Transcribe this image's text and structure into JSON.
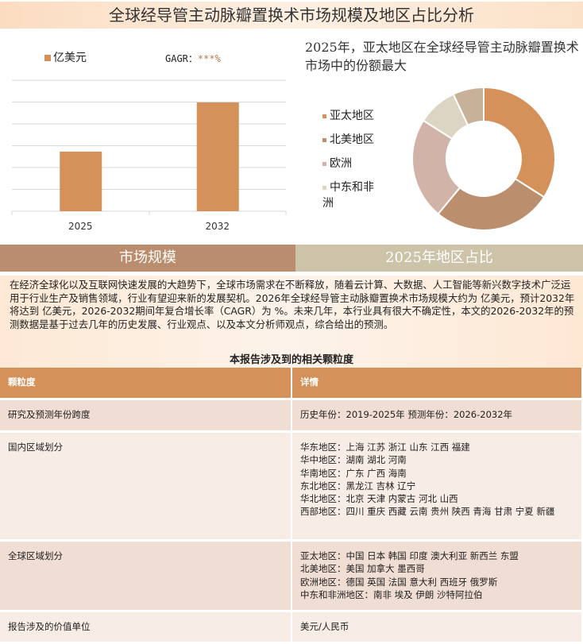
{
  "title": "全球经导管主动脉瓣置换术市场规模及地区占比分析",
  "colors": {
    "accent": "#d4915a",
    "tab_left": "#b98d6d",
    "tab_right": "#cdc3a8"
  },
  "chart_data": [
    {
      "type": "bar",
      "categories": [
        "2025",
        "2032"
      ],
      "values": [
        2.73,
        4.98
      ],
      "ylim": [
        0,
        6
      ],
      "grid": true,
      "legend": "亿美元",
      "cagr_label": "GAGR：",
      "cagr_value": "***%",
      "series": [
        {
          "name": "亿美元",
          "values": [
            2.73,
            4.98
          ]
        }
      ]
    },
    {
      "type": "pie",
      "donut": true,
      "title": "2025年，亚太地区在全球经导管主动脉瓣置换术市场中的份额最大",
      "labels": [
        "亚太地区",
        "北美地区",
        "欧洲",
        "中东和非洲",
        ""
      ],
      "values": [
        34,
        27,
        23,
        9,
        7
      ],
      "colors": [
        "#d4915a",
        "#bb8e6d",
        "#d2b3a8",
        "#ddd5c4",
        "#c7b198"
      ],
      "legend": "left"
    }
  ],
  "tabs": [
    "市场规模",
    "2025年地区占比"
  ],
  "intro": "在经济全球化以及互联网快速发展的大趋势下，全球市场需求在不断释放，随着云计算、大数据、人工智能等新兴数字技术广泛运用于行业生产及销售领域，行业有望迎来新的发展契机。2026年全球经导管主动脉瓣置换术市场规模大约为 亿美元，预计2032年将达到 亿美元，2026-2032期间年复合增长率（CAGR）为 %。未来几年，本行业具有很大不确定性，本文的2026-2032年的预测数据是基于过去几年的历史发展、行业观点、以及本文分析师观点，综合给出的预测。",
  "table": {
    "title": "本报告涉及到的相关颗粒度",
    "headers": [
      "颗粒度",
      "详情"
    ],
    "rows": [
      {
        "k": "研究及预测年份跨度",
        "v": [
          "历史年份：2019-2025年 预测年份：2026-2032年"
        ]
      },
      {
        "k": "国内区域划分",
        "v": [
          "华东地区：上海  江苏  浙江  山东  江西  福建",
          "华中地区：湖南  湖北  河南",
          "华南地区：广东  广西  海南",
          "东北地区：黑龙江  吉林  辽宁",
          "华北地区：北京  天津  内蒙古  河北  山西",
          "西部地区：四川  重庆  西藏  云南  贵州  陕西  青海  甘肃  宁夏  新疆"
        ]
      },
      {
        "k": "全球区域划分",
        "v": [
          "亚太地区：中国  日本  韩国  印度  澳大利亚  新西兰  东盟",
          "北美地区：美国  加拿大  墨西哥",
          "欧洲地区：德国  英国  法国  意大利  西班牙  俄罗斯",
          "中东和非洲地区：南非  埃及  伊朗  沙特阿拉伯"
        ]
      },
      {
        "k": "报告涉及的价值单位",
        "v": [
          "美元/人民币"
        ]
      }
    ]
  }
}
